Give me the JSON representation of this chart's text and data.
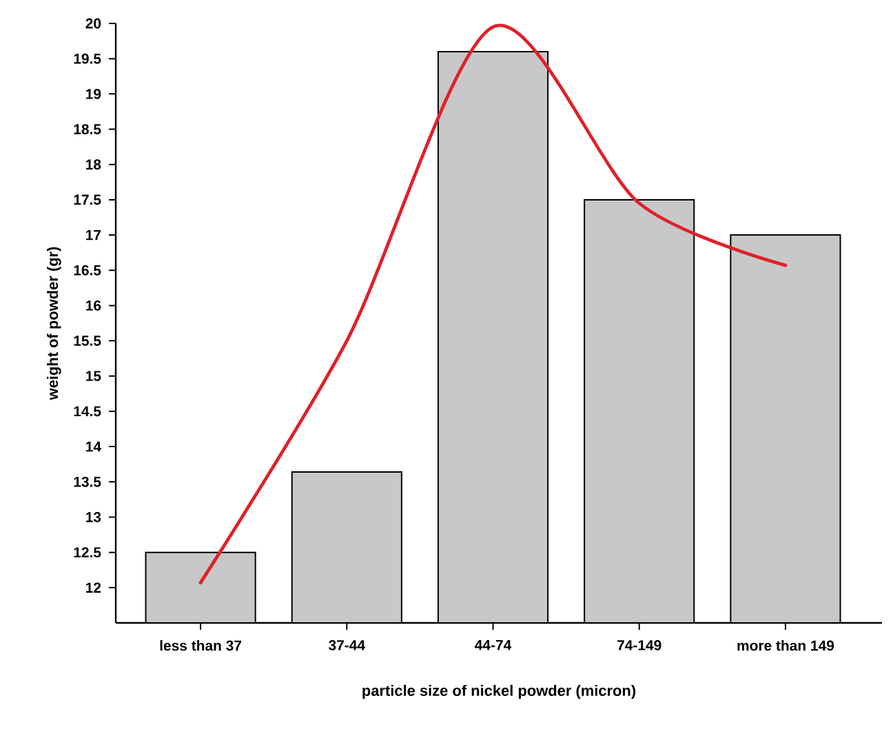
{
  "chart_data": {
    "type": "bar",
    "xlabel": "particle size of nickel powder (micron)",
    "ylabel": "weight of powder (gr)",
    "categories": [
      "less than 37",
      "37-44",
      "44-74",
      "74-149",
      "more than 149"
    ],
    "ylim": [
      11.5,
      20
    ],
    "yticks": [
      12,
      12.5,
      13,
      13.5,
      14,
      14.5,
      15,
      15.5,
      16,
      16.5,
      17,
      17.5,
      18,
      18.5,
      19,
      19.5,
      20
    ],
    "series": [
      {
        "color": "#c8c8c8",
        "values": [
          12.5,
          13.64,
          19.6,
          17.5,
          17.0
        ]
      },
      {
        "type": "line",
        "color": "#e0202a",
        "values": [
          12.07,
          15.5,
          19.95,
          17.45,
          16.57
        ]
      }
    ]
  }
}
